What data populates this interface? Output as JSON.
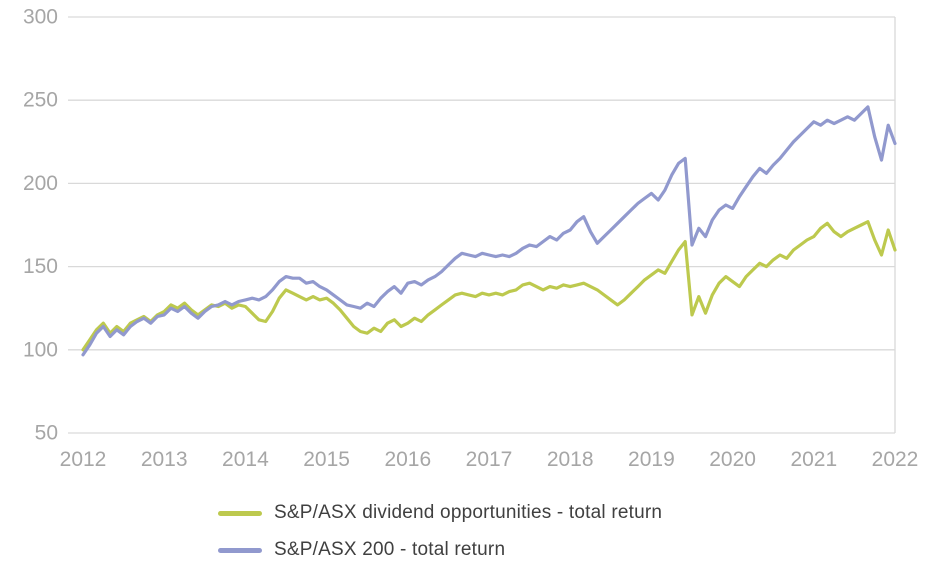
{
  "chart_data": {
    "type": "line",
    "xlim": [
      2012,
      2022
    ],
    "ylim": [
      50,
      300
    ],
    "x_ticks": [
      2012,
      2013,
      2014,
      2015,
      2016,
      2017,
      2018,
      2019,
      2020,
      2021,
      2022
    ],
    "y_ticks": [
      50,
      100,
      150,
      200,
      250,
      300
    ],
    "grid": "horizontal",
    "grid_color": "#d9d9d9",
    "axis_label_color": "#a6a6a6",
    "legend_position": "bottom",
    "legend_text_color": "#404040",
    "points_per_year": 12,
    "series": [
      {
        "name": "S&P/ASX dividend opportunities - total return",
        "color": "#bdc94e",
        "values": [
          100,
          106,
          112,
          116,
          110,
          114,
          111,
          116,
          118,
          120,
          117,
          121,
          123,
          127,
          125,
          128,
          124,
          121,
          124,
          127,
          126,
          128,
          125,
          127,
          126,
          122,
          118,
          117,
          123,
          131,
          136,
          134,
          132,
          130,
          132,
          130,
          131,
          128,
          124,
          119,
          114,
          111,
          110,
          113,
          111,
          116,
          118,
          114,
          116,
          119,
          117,
          121,
          124,
          127,
          130,
          133,
          134,
          133,
          132,
          134,
          133,
          134,
          133,
          135,
          136,
          139,
          140,
          138,
          136,
          138,
          137,
          139,
          138,
          139,
          140,
          138,
          136,
          133,
          130,
          127,
          130,
          134,
          138,
          142,
          145,
          148,
          146,
          153,
          160,
          165,
          121,
          132,
          122,
          133,
          140,
          144,
          141,
          138,
          144,
          148,
          152,
          150,
          154,
          157,
          155,
          160,
          163,
          166,
          168,
          173,
          176,
          171,
          168,
          171,
          173,
          175,
          177,
          166,
          157,
          172,
          160
        ]
      },
      {
        "name": "S&P/ASX 200 - total return",
        "color": "#9199ce",
        "values": [
          97,
          103,
          110,
          114,
          108,
          112,
          109,
          114,
          117,
          119,
          116,
          120,
          121,
          125,
          123,
          126,
          122,
          119,
          123,
          126,
          127,
          129,
          127,
          129,
          130,
          131,
          130,
          132,
          136,
          141,
          144,
          143,
          143,
          140,
          141,
          138,
          136,
          133,
          130,
          127,
          126,
          125,
          128,
          126,
          131,
          135,
          138,
          134,
          140,
          141,
          139,
          142,
          144,
          147,
          151,
          155,
          158,
          157,
          156,
          158,
          157,
          156,
          157,
          156,
          158,
          161,
          163,
          162,
          165,
          168,
          166,
          170,
          172,
          177,
          180,
          171,
          164,
          168,
          172,
          176,
          180,
          184,
          188,
          191,
          194,
          190,
          196,
          205,
          212,
          215,
          163,
          173,
          168,
          178,
          184,
          187,
          185,
          192,
          198,
          204,
          209,
          206,
          211,
          215,
          220,
          225,
          229,
          233,
          237,
          235,
          238,
          236,
          238,
          240,
          238,
          242,
          246,
          228,
          214,
          235,
          224
        ]
      }
    ]
  }
}
